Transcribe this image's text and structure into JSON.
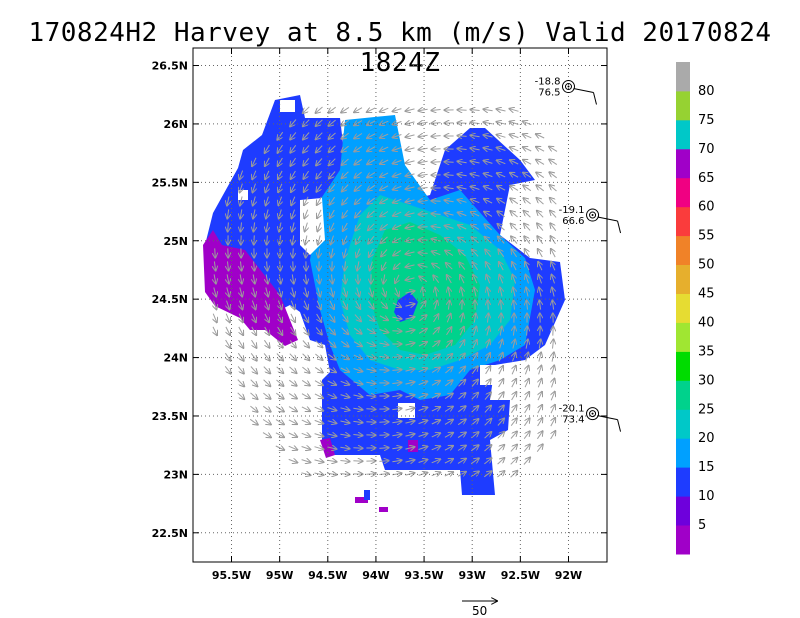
{
  "title": "170824H2 Harvey at 8.5 km (m/s) Valid 20170824 1824Z",
  "lon_ticks": [
    {
      "lon": -95.5,
      "label": "95.5W"
    },
    {
      "lon": -95.0,
      "label": "95W"
    },
    {
      "lon": -94.5,
      "label": "94.5W"
    },
    {
      "lon": -94.0,
      "label": "94W"
    },
    {
      "lon": -93.5,
      "label": "93.5W"
    },
    {
      "lon": -93.0,
      "label": "93W"
    },
    {
      "lon": -92.5,
      "label": "92.5W"
    },
    {
      "lon": -92.0,
      "label": "92W"
    }
  ],
  "lat_ticks": [
    {
      "lat": 26.5,
      "label": "26.5N"
    },
    {
      "lat": 26.0,
      "label": "26N"
    },
    {
      "lat": 25.5,
      "label": "25.5N"
    },
    {
      "lat": 25.0,
      "label": "25N"
    },
    {
      "lat": 24.5,
      "label": "24.5N"
    },
    {
      "lat": 24.0,
      "label": "24N"
    },
    {
      "lat": 23.5,
      "label": "23.5N"
    },
    {
      "lat": 23.0,
      "label": "23N"
    },
    {
      "lat": 22.5,
      "label": "22.5N"
    }
  ],
  "map_extent": {
    "lon_min": -95.9,
    "lon_max": -91.6,
    "lat_min": 22.25,
    "lat_max": 26.65
  },
  "colorbar": {
    "levels": [
      {
        "label": "",
        "color": "#a000c8"
      },
      {
        "label": "5",
        "color": "#6e00dc"
      },
      {
        "label": "10",
        "color": "#1e3cff"
      },
      {
        "label": "15",
        "color": "#00a0ff"
      },
      {
        "label": "20",
        "color": "#00c8c8"
      },
      {
        "label": "25",
        "color": "#00d28c"
      },
      {
        "label": "30",
        "color": "#00dc00"
      },
      {
        "label": "35",
        "color": "#a0e632"
      },
      {
        "label": "40",
        "color": "#e6dc32"
      },
      {
        "label": "45",
        "color": "#e6af2d"
      },
      {
        "label": "50",
        "color": "#f08228"
      },
      {
        "label": "55",
        "color": "#fa3c3c"
      },
      {
        "label": "60",
        "color": "#f00082"
      },
      {
        "label": "65",
        "color": "#a000c8"
      },
      {
        "label": "70",
        "color": "#00c8c8"
      },
      {
        "label": "75",
        "color": "#96d232"
      },
      {
        "label": "80",
        "color": "#aaaaaa"
      }
    ]
  },
  "buoys": [
    {
      "lon": -92.0,
      "lat": 26.32,
      "line1": "-18.8",
      "line2": "76.5"
    },
    {
      "lon": -91.75,
      "lat": 25.22,
      "line1": "-19.1",
      "line2": "66.6"
    },
    {
      "lon": -91.75,
      "lat": 23.52,
      "line1": "-20.1",
      "line2": "73.4"
    }
  ],
  "vector_scale": {
    "label": "50",
    "value": 50
  }
}
